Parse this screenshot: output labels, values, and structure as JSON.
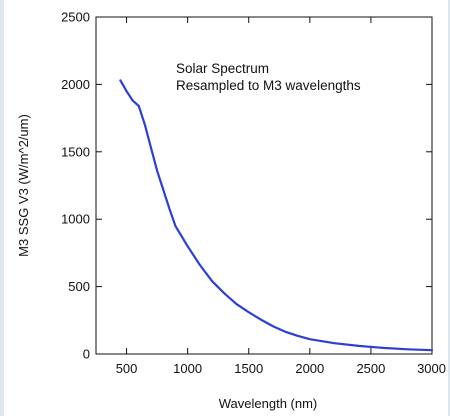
{
  "chart_data": {
    "type": "line",
    "annotation_lines": [
      "Solar Spectrum",
      "Resampled to M3 wavelengths"
    ],
    "xlabel": "Wavelength (nm)",
    "ylabel": "M3 SSG V3 (W/m^2/um)",
    "xlim": [
      250,
      3000
    ],
    "ylim": [
      0,
      2500
    ],
    "xticks": [
      500,
      1000,
      1500,
      2000,
      2500,
      3000
    ],
    "yticks": [
      0,
      500,
      1000,
      1500,
      2000,
      2500
    ],
    "grid": false,
    "series": [
      {
        "color": "#2c3fd6",
        "x": [
          450,
          500,
          550,
          600,
          650,
          700,
          750,
          800,
          850,
          900,
          1000,
          1100,
          1200,
          1300,
          1400,
          1500,
          1600,
          1700,
          1800,
          1900,
          2000,
          2200,
          2400,
          2600,
          2800,
          3000
        ],
        "y": [
          2030,
          1950,
          1880,
          1840,
          1700,
          1530,
          1360,
          1220,
          1080,
          950,
          800,
          660,
          540,
          450,
          370,
          310,
          255,
          205,
          165,
          135,
          110,
          80,
          60,
          45,
          35,
          28
        ]
      }
    ]
  }
}
